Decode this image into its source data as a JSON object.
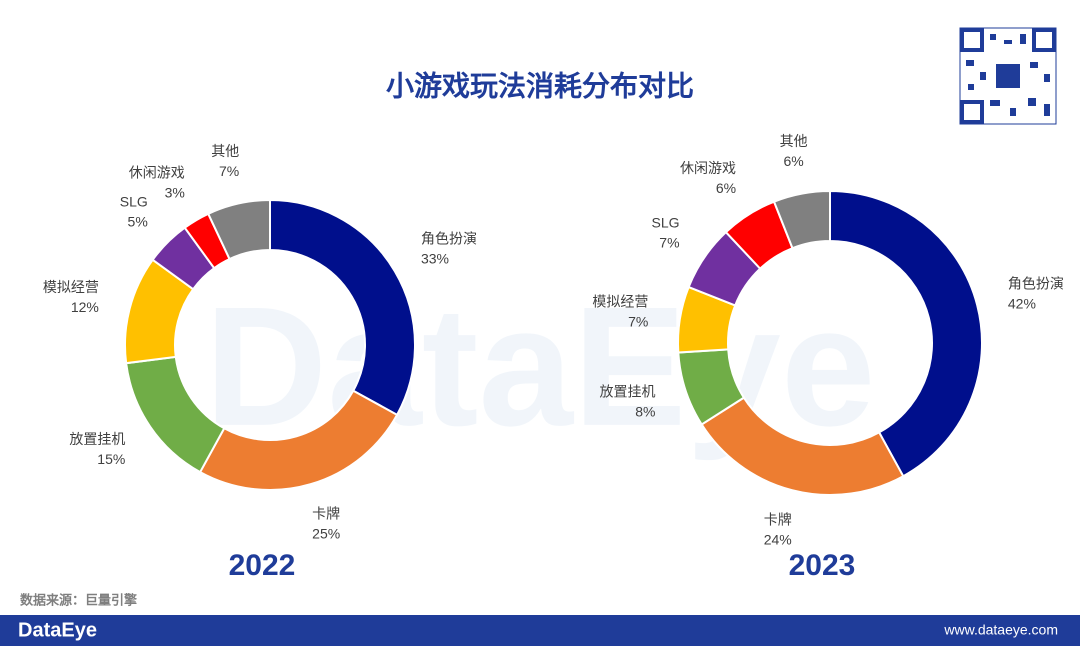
{
  "title": "小游戏玩法消耗分布对比",
  "watermark": "DataEye",
  "source": "数据来源：巨量引擎",
  "footer": {
    "brand": "DataEye",
    "url": "www.dataeye.com"
  },
  "chart_data": [
    {
      "type": "donut",
      "title": "2022",
      "categories": [
        "角色扮演",
        "卡牌",
        "放置挂机",
        "模拟经营",
        "SLG",
        "休闲游戏",
        "其他"
      ],
      "values": [
        33,
        25,
        15,
        12,
        5,
        3,
        7
      ],
      "value_labels": [
        "33%",
        "25%",
        "15%",
        "12%",
        "5%",
        "3%",
        "7%"
      ],
      "colors": [
        "#000f8c",
        "#ed7d31",
        "#70ad47",
        "#ffc000",
        "#7030a0",
        "#ff0000",
        "#808080"
      ]
    },
    {
      "type": "donut",
      "title": "2023",
      "categories": [
        "角色扮演",
        "卡牌",
        "放置挂机",
        "模拟经营",
        "SLG",
        "休闲游戏",
        "其他"
      ],
      "values": [
        42,
        24,
        8,
        7,
        7,
        6,
        6
      ],
      "value_labels": [
        "42%",
        "24%",
        "8%",
        "7%",
        "7%",
        "6%",
        "6%"
      ],
      "colors": [
        "#000f8c",
        "#ed7d31",
        "#70ad47",
        "#ffc000",
        "#7030a0",
        "#ff0000",
        "#808080"
      ]
    }
  ]
}
